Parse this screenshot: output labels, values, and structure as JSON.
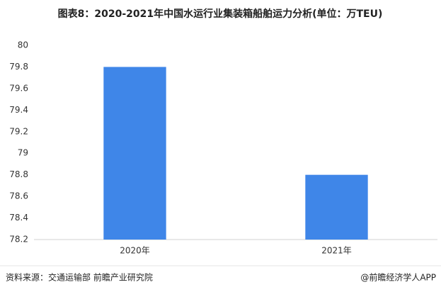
{
  "chart_data": {
    "type": "bar",
    "title": "图表8：2020-2021年中国水运行业集装箱船舶运力分析(单位：万TEU)",
    "categories": [
      "2020年",
      "2021年"
    ],
    "values": [
      79.8,
      78.8
    ],
    "color": "#3f86e8",
    "ylim": [
      78.2,
      80
    ],
    "yticks": [
      78.2,
      78.4,
      78.6,
      78.8,
      79,
      79.2,
      79.4,
      79.6,
      79.8,
      80
    ],
    "grid": false,
    "source": "资料来源：交通运输部 前瞻产业研究院",
    "credit": "@前瞻经济学人APP"
  }
}
